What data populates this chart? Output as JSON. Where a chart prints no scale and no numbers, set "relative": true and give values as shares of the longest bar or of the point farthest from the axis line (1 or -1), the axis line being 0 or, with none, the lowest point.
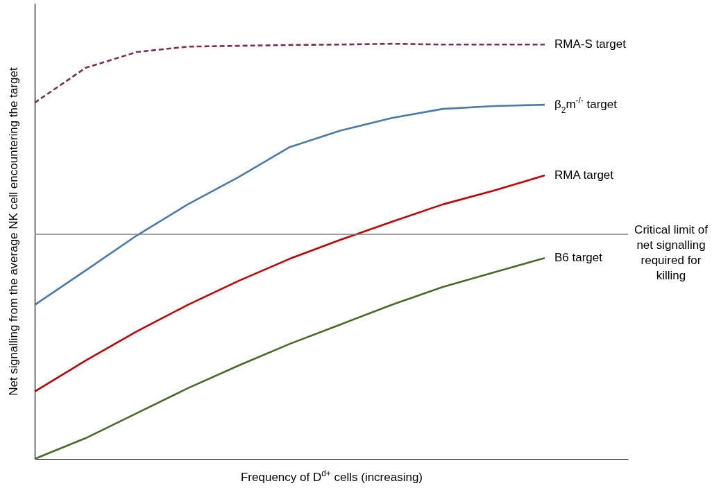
{
  "chart_data": {
    "type": "line",
    "relative": true,
    "xlabel": "Frequency of D$^{d+}$ cells (increasing)",
    "ylabel": "Net signalling from the average NK cell encountering the target",
    "categories": [
      null,
      null,
      null,
      null,
      null,
      null,
      null,
      null,
      null,
      null,
      null
    ],
    "tick_labels": false,
    "grid": false,
    "series": [
      {
        "name": "RMA-S target",
        "color": "#7b2d52",
        "line_style": "dashed",
        "values": [
          0.858,
          0.942,
          0.98,
          0.993,
          0.995,
          0.997,
          0.998,
          1.0,
          0.998,
          0.998,
          0.998
        ]
      },
      {
        "name": "β$_{2}$m$^{-/-}$ target",
        "color": "#4a7aa8",
        "values": [
          0.371,
          0.454,
          0.538,
          0.613,
          0.679,
          0.751,
          0.791,
          0.821,
          0.843,
          0.85,
          0.853
        ]
      },
      {
        "name": "RMA target",
        "color": "#c00000",
        "values": [
          0.162,
          0.237,
          0.307,
          0.371,
          0.429,
          0.482,
          0.528,
          0.571,
          0.613,
          0.646,
          0.683
        ]
      },
      {
        "name": "B6 target",
        "color": "#4a6a2a",
        "values": [
          0,
          0.05,
          0.11,
          0.17,
          0.225,
          0.277,
          0.324,
          0.371,
          0.414,
          0.449,
          0.484
        ]
      }
    ],
    "ref_lines": [
      {
        "axis": "y",
        "value": 0.541,
        "label": "Critical limit of net signalling required for killing",
        "color": "#808080"
      }
    ]
  }
}
